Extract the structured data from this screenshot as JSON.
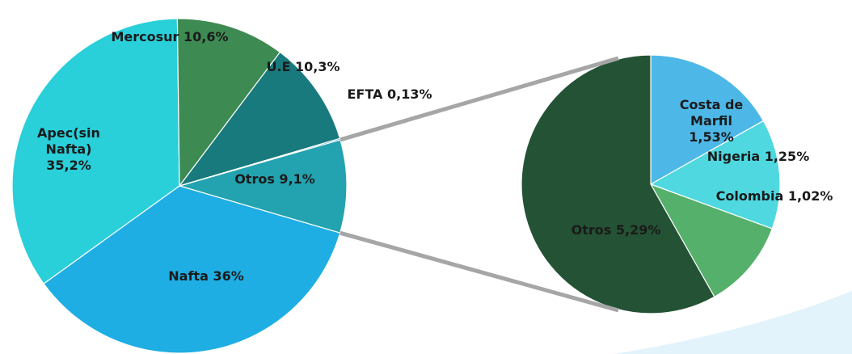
{
  "chart_data": [
    {
      "type": "pie",
      "categories": [
        "Otros",
        "Nafta",
        "Apec(sin Nafta)",
        "Mercosur",
        "U.E",
        "EFTA"
      ],
      "values": [
        9.1,
        36,
        35.2,
        10.6,
        10.3,
        0.13
      ],
      "value_labels": [
        "9,1%",
        "36%",
        "35,2%",
        "10,6%",
        "10,3%",
        "0,13%"
      ],
      "colors": [
        "#23a3b0",
        "#1eaee3",
        "#29cfd9",
        "#3e8a53",
        "#187a7d",
        "#1b8dbf"
      ]
    },
    {
      "type": "pie",
      "categories": [
        "Costa de Marfil",
        "Nigeria",
        "Colombia",
        "Otros"
      ],
      "values": [
        1.53,
        1.25,
        1.02,
        5.29
      ],
      "value_labels": [
        "1,53%",
        "1,25%",
        "1,02%",
        "5,29%"
      ],
      "colors": [
        "#4db8e8",
        "#4fd8e0",
        "#55b06b",
        "#245235"
      ]
    }
  ]
}
